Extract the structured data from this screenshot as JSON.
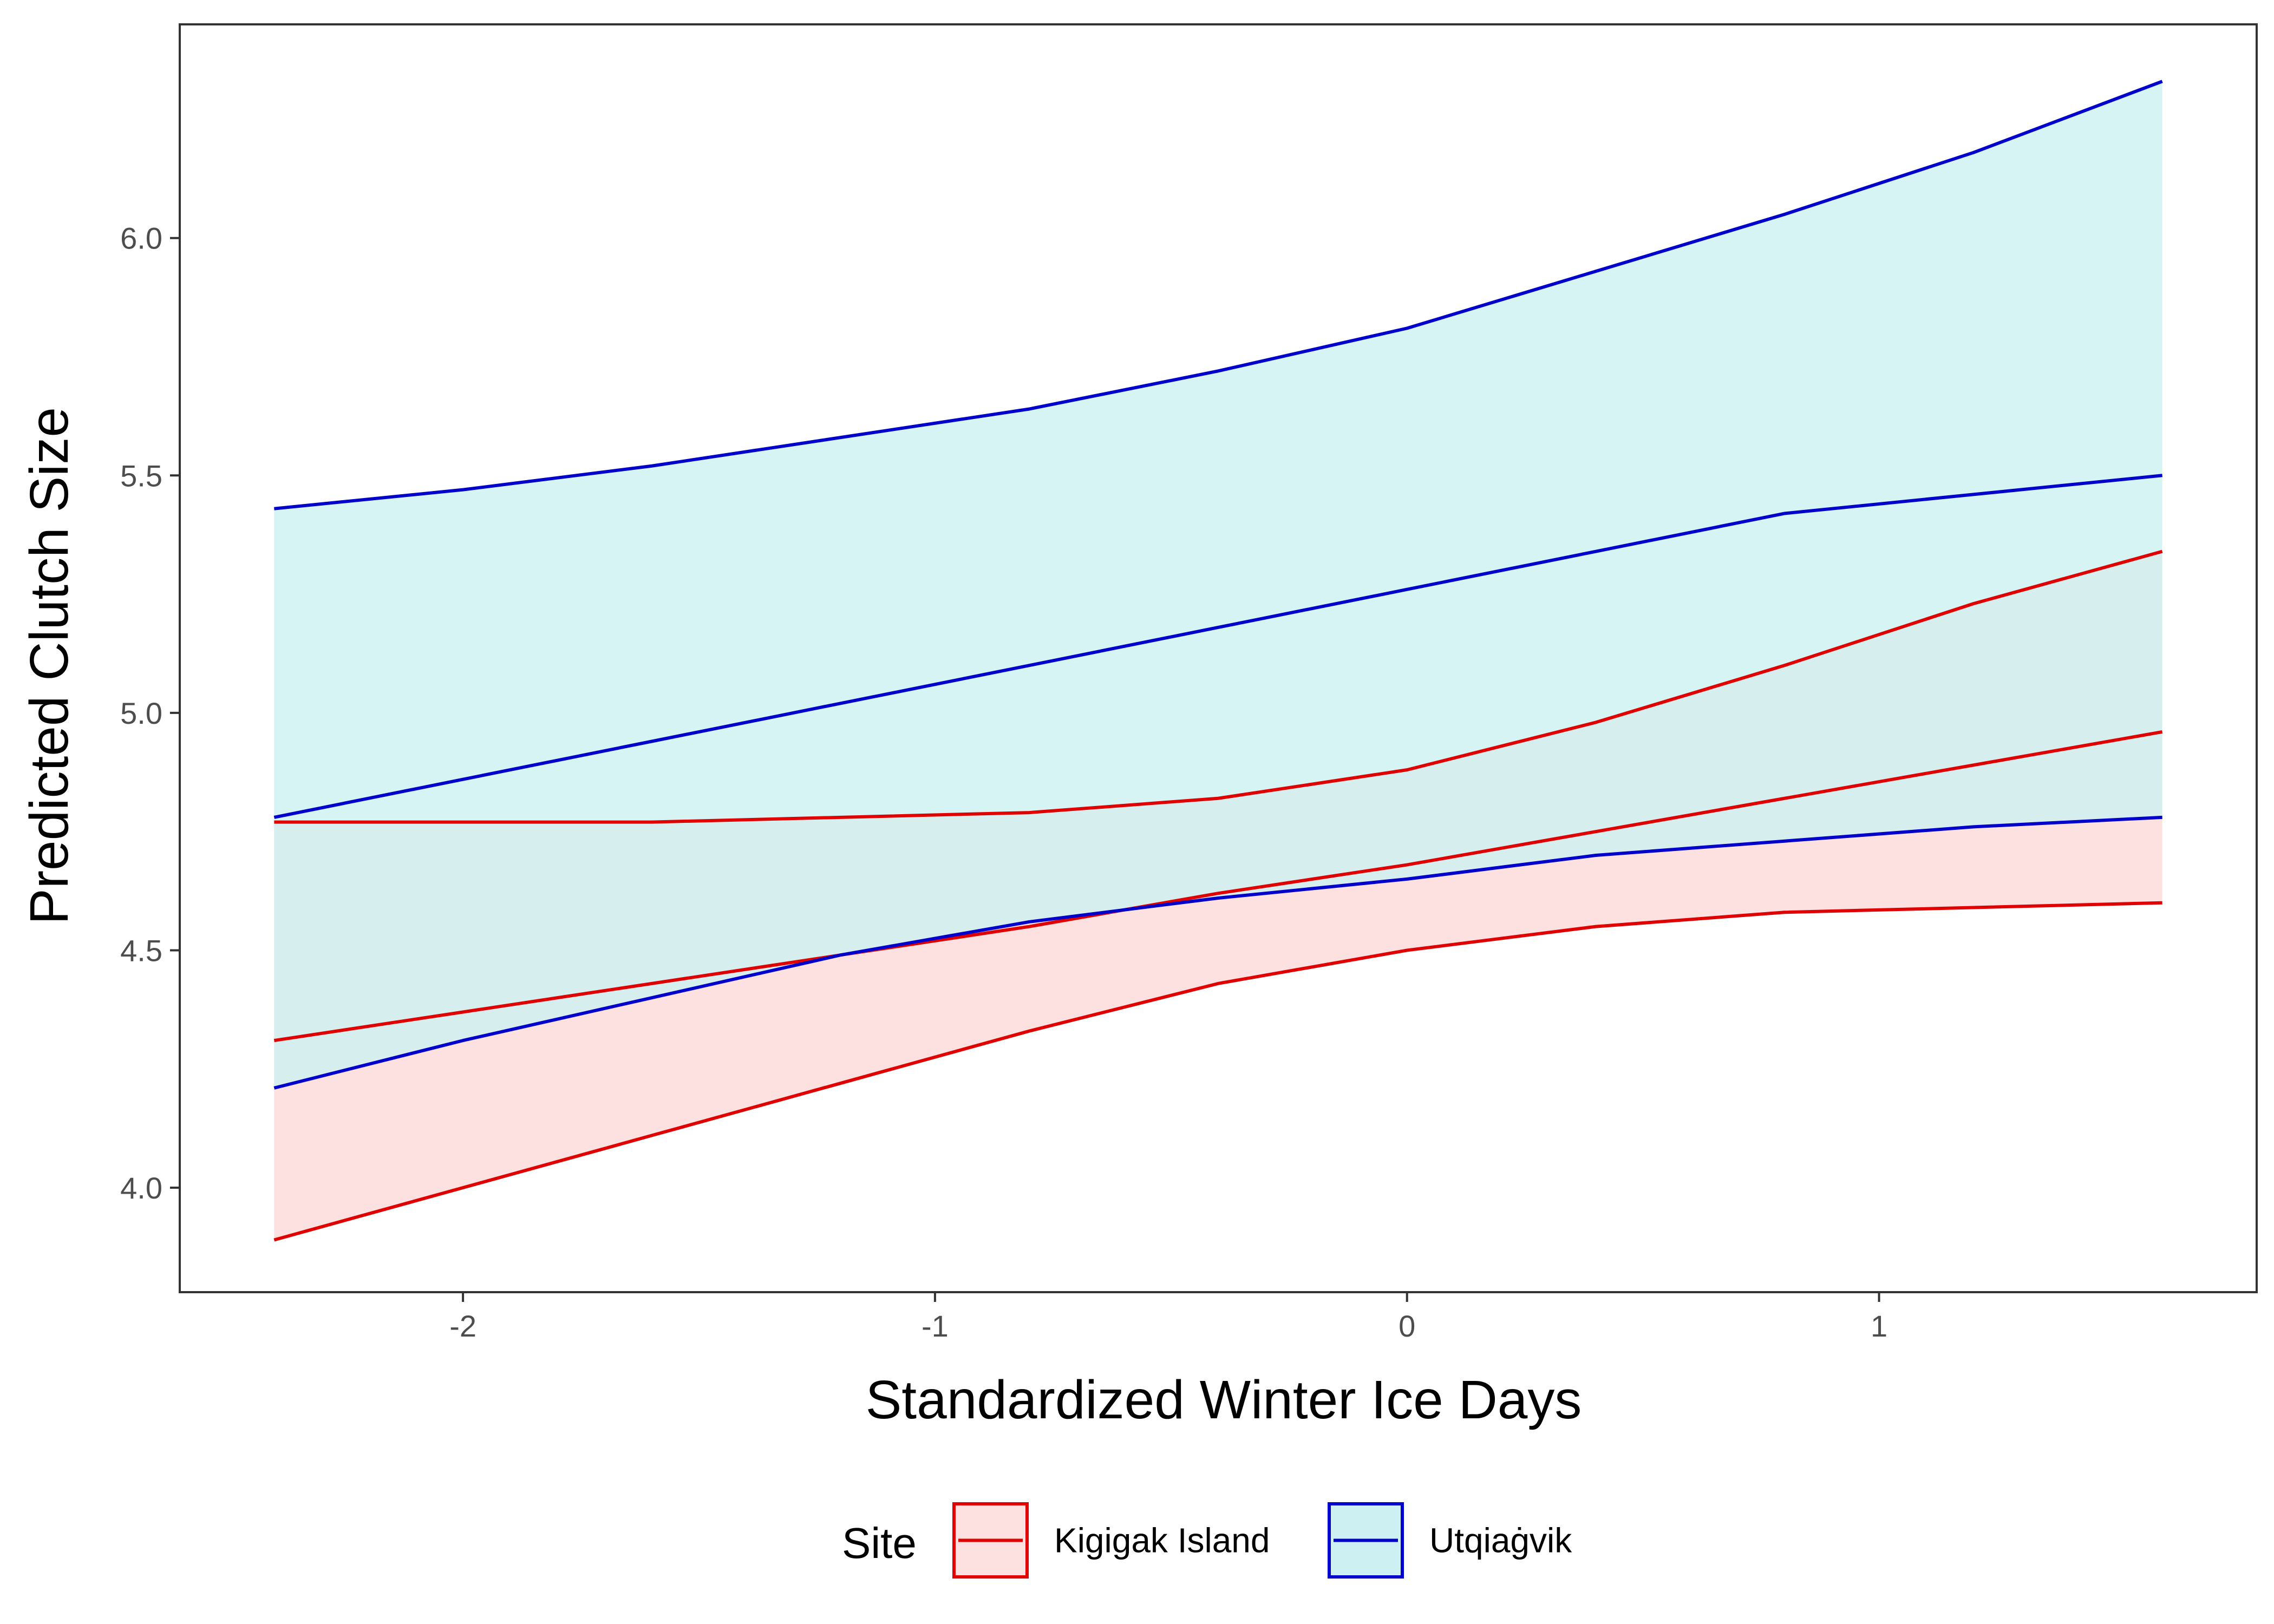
{
  "chart_data": {
    "type": "line",
    "title": "",
    "xlabel": "Standardized Winter Ice Days",
    "ylabel": "Predicted Clutch Size",
    "xlim": [
      -2.6,
      1.8
    ],
    "ylim": [
      3.78,
      6.45
    ],
    "xticks": [
      -2,
      -1,
      0,
      1
    ],
    "xtick_labels": [
      "-2",
      "-1",
      "0",
      "1"
    ],
    "yticks": [
      4.0,
      4.5,
      5.0,
      5.5,
      6.0
    ],
    "ytick_labels": [
      "4.0",
      "4.5",
      "5.0",
      "5.5",
      "6.0"
    ],
    "grid": false,
    "legend": {
      "title": "Site",
      "position": "bottom"
    },
    "x": [
      -2.4,
      -2.0,
      -1.6,
      -1.2,
      -0.8,
      -0.4,
      0.0,
      0.4,
      0.8,
      1.2,
      1.6
    ],
    "series": [
      {
        "name": "Kigigak Island",
        "color": "#e00000",
        "fill": "#fde1e1",
        "mean": [
          4.31,
          4.37,
          4.43,
          4.49,
          4.55,
          4.62,
          4.68,
          4.75,
          4.82,
          4.89,
          4.96
        ],
        "lower": [
          3.89,
          4.0,
          4.11,
          4.22,
          4.33,
          4.43,
          4.5,
          4.55,
          4.58,
          4.59,
          4.6
        ],
        "upper": [
          4.77,
          4.77,
          4.77,
          4.78,
          4.79,
          4.82,
          4.88,
          4.98,
          5.1,
          5.23,
          5.34
        ]
      },
      {
        "name": "Utqiaġvik",
        "color": "#0000cc",
        "fill": "#cdf1f2",
        "mean": [
          4.78,
          4.86,
          4.94,
          5.02,
          5.1,
          5.18,
          5.26,
          5.34,
          5.42,
          5.46,
          5.5
        ],
        "lower": [
          4.21,
          4.31,
          4.4,
          4.49,
          4.56,
          4.61,
          4.65,
          4.7,
          4.73,
          4.76,
          4.78
        ],
        "upper": [
          5.43,
          5.47,
          5.52,
          5.58,
          5.64,
          5.72,
          5.81,
          5.93,
          6.05,
          6.18,
          6.33
        ]
      }
    ]
  }
}
